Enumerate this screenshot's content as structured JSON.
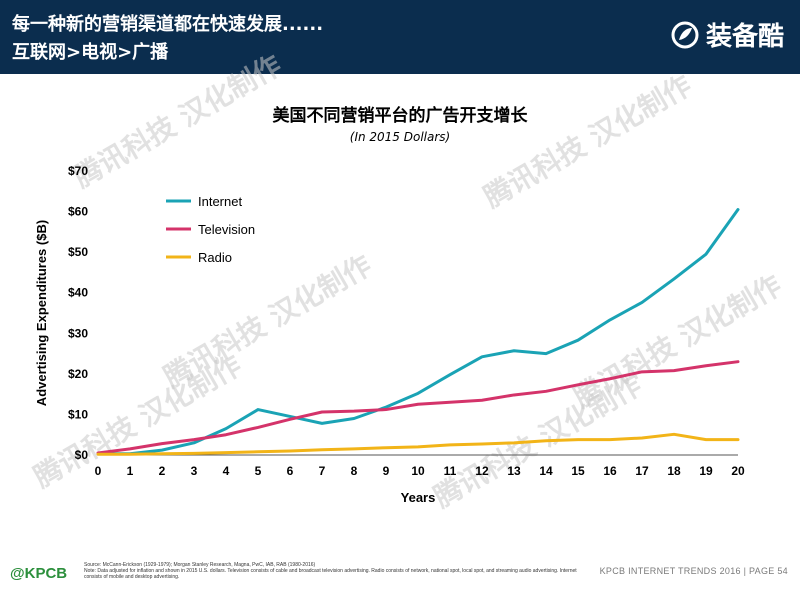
{
  "header": {
    "line1": "每一种新的营销渠道都在快速发展......",
    "line2": "互联网>电视>广播",
    "brand": "装备酷"
  },
  "watermarks": [
    "腾讯科技 汉化制作",
    "腾讯科技 汉化制作",
    "腾讯科技 汉化制作",
    "腾讯科技 汉化制作",
    "腾讯科技 汉化制作",
    "腾讯科技 汉化制作"
  ],
  "chart_data": {
    "type": "line",
    "title": "美国不同营销平台的广告开支增长",
    "subtitle": "(In 2015 Dollars)",
    "xlabel": "Years",
    "ylabel": "Advertising Expenditures ($B)",
    "x": [
      0,
      1,
      2,
      3,
      4,
      5,
      6,
      7,
      8,
      9,
      10,
      11,
      12,
      13,
      14,
      15,
      16,
      17,
      18,
      19,
      20
    ],
    "xlim": [
      0,
      20
    ],
    "ylim": [
      0,
      70
    ],
    "yticks": [
      0,
      10,
      20,
      30,
      40,
      50,
      60,
      70
    ],
    "ytick_labels": [
      "$0",
      "$10",
      "$20",
      "$30",
      "$40",
      "$50",
      "$60",
      "$70"
    ],
    "legend_position": "top-left",
    "grid": false,
    "series": [
      {
        "name": "Internet",
        "color": "#1aa3b5",
        "values": [
          0.3,
          0.3,
          1.2,
          3.0,
          6.5,
          11.2,
          9.5,
          7.8,
          9.0,
          11.8,
          15.2,
          19.8,
          24.2,
          25.7,
          25.0,
          28.3,
          33.3,
          37.6,
          43.4,
          49.5,
          60.5
        ]
      },
      {
        "name": "Television",
        "color": "#d4336a",
        "values": [
          0.5,
          1.5,
          2.8,
          3.8,
          5.0,
          6.8,
          8.8,
          10.6,
          10.8,
          11.2,
          12.5,
          13.0,
          13.5,
          14.8,
          15.7,
          17.3,
          18.8,
          20.5,
          20.8,
          22.0,
          23.0
        ]
      },
      {
        "name": "Radio",
        "color": "#f2b418",
        "values": [
          0.2,
          0.2,
          0.3,
          0.4,
          0.6,
          0.8,
          1.0,
          1.3,
          1.5,
          1.8,
          2.0,
          2.5,
          2.7,
          3.0,
          3.5,
          3.8,
          3.8,
          4.2,
          5.1,
          3.8,
          3.8
        ]
      }
    ]
  },
  "footer": {
    "logo": "@KPCB",
    "source_line1": "Source: McCann-Erickson (1929-1979); Morgan Stanley Research, Magna, PwC, IAB, RAB (1980-2016)",
    "source_line2": "Note: Data adjusted for inflation and shown in 2015 U.S. dollars. Television consists of cable and broadcast television advertising. Radio consists of network, national spot, local spot, and streaming audio advertising. Internet consists of mobile and desktop advertising.",
    "right": "KPCB INTERNET TRENDS 2016  |  PAGE 54"
  }
}
